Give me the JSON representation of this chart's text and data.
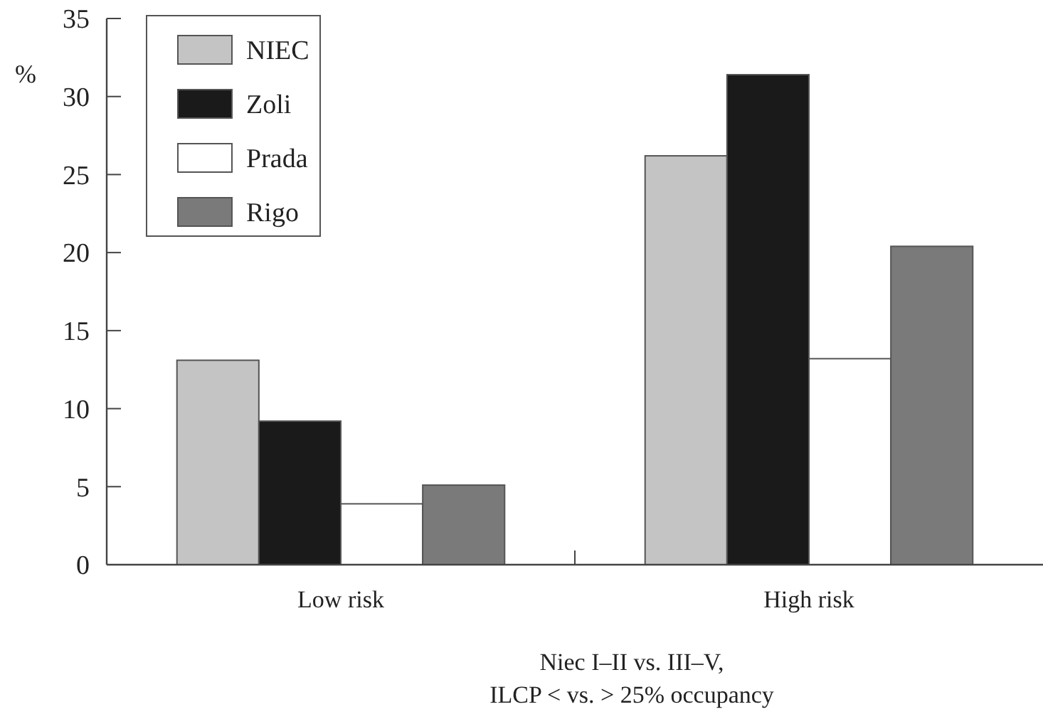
{
  "chart_data": {
    "type": "bar",
    "xlabel": "Niec I–II vs. III–V,\nILCP < vs. > 25% occupancy",
    "ylabel": "%",
    "categories": [
      "Low risk",
      "High risk"
    ],
    "series": [
      {
        "name": "NIEC",
        "color": "#c4c4c4",
        "values": [
          13.1,
          26.2
        ]
      },
      {
        "name": "Zoli",
        "color": "#1a1a1a",
        "values": [
          9.2,
          31.4
        ]
      },
      {
        "name": "Prada",
        "color": "#ffffff",
        "values": [
          3.9,
          13.2
        ]
      },
      {
        "name": "Rigo",
        "color": "#7a7a7a",
        "values": [
          5.1,
          20.4
        ]
      }
    ],
    "ylim": [
      0,
      35
    ],
    "yticks": [
      0,
      5,
      10,
      15,
      20,
      25,
      30,
      35
    ],
    "grid": false,
    "legend": "top left"
  }
}
